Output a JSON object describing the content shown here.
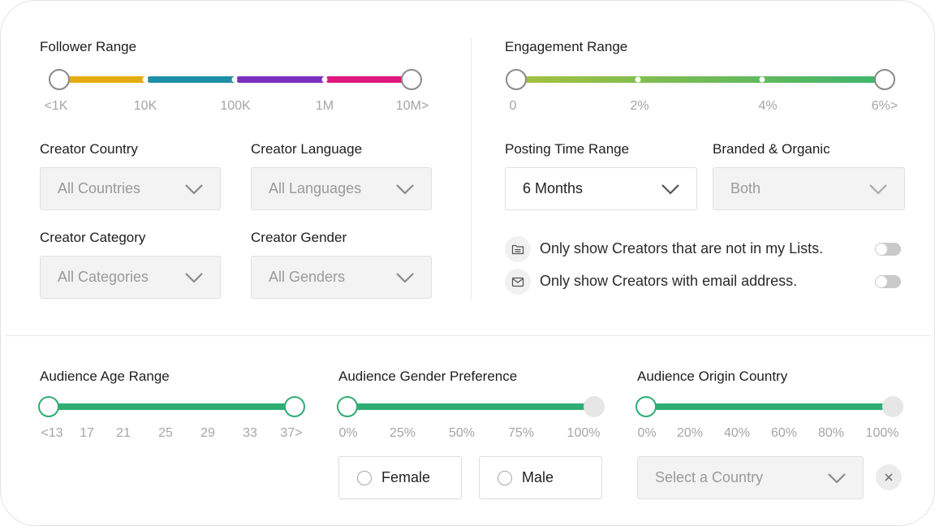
{
  "follower_range": {
    "label": "Follower Range",
    "ticks": [
      "<1K",
      "10K",
      "100K",
      "1M",
      "10M>"
    ],
    "segment_colors": [
      "#e5ac12",
      "#1d8fa6",
      "#7a2fc0",
      "#e0177c"
    ]
  },
  "engagement_range": {
    "label": "Engagement Range",
    "ticks": [
      "0",
      "2%",
      "4%",
      "6%>"
    ],
    "gradient_from": "#a5c13f",
    "gradient_to": "#3fb56e"
  },
  "creator_country": {
    "label": "Creator Country",
    "value": "All Countries"
  },
  "creator_language": {
    "label": "Creator Language",
    "value": "All Languages"
  },
  "creator_category": {
    "label": "Creator Category",
    "value": "All Categories"
  },
  "creator_gender": {
    "label": "Creator Gender",
    "value": "All Genders"
  },
  "posting_time_range": {
    "label": "Posting Time Range",
    "value": "6 Months"
  },
  "branded_organic": {
    "label": "Branded & Organic",
    "value": "Both"
  },
  "options": {
    "not_in_lists": {
      "text": "Only show Creators that are not in my Lists.",
      "icon": "list-folder-icon",
      "enabled": false
    },
    "with_email": {
      "text": "Only show Creators with email address.",
      "icon": "mail-icon",
      "enabled": false
    }
  },
  "audience_age_range": {
    "label": "Audience Age Range",
    "ticks": [
      "<13",
      "17",
      "21",
      "25",
      "29",
      "33",
      "37>"
    ]
  },
  "audience_gender_preference": {
    "label": "Audience Gender Preference",
    "ticks": [
      "0%",
      "25%",
      "50%",
      "75%",
      "100%"
    ],
    "female_label": "Female",
    "male_label": "Male"
  },
  "audience_origin_country": {
    "label": "Audience Origin Country",
    "ticks": [
      "0%",
      "20%",
      "40%",
      "60%",
      "80%",
      "100%"
    ],
    "placeholder": "Select a Country"
  },
  "colors": {
    "accent_green": "#2fae73"
  }
}
